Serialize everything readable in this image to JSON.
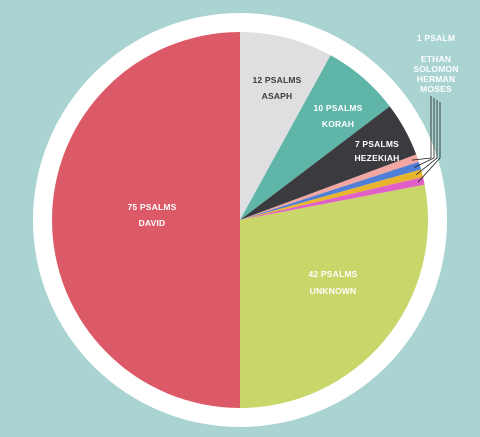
{
  "chart_data": {
    "type": "pie",
    "title": "",
    "unit": "PSALMS",
    "total": 150,
    "slices": [
      {
        "name": "ASAPH",
        "count_label": "12 PSALMS",
        "value": 12,
        "color": "#dfdfe1"
      },
      {
        "name": "KORAH",
        "count_label": "10 PSALMS",
        "value": 10,
        "color": "#5fb5a8"
      },
      {
        "name": "HEZEKIAH",
        "count_label": "7 PSALMS",
        "value": 7,
        "color": "#3b3b3f"
      },
      {
        "name": "ETHAN",
        "value": 1,
        "color": "#f2a7a2"
      },
      {
        "name": "SOLOMON",
        "value": 1,
        "color": "#4f7fd6"
      },
      {
        "name": "HERMAN",
        "value": 1,
        "color": "#e9b52c"
      },
      {
        "name": "MOSES",
        "value": 1,
        "color": "#e060c8"
      },
      {
        "name": "UNKNOWN",
        "count_label": "42 PSALMS",
        "value": 42,
        "color": "#c8d66a"
      },
      {
        "name": "DAVID",
        "count_label": "75 PSALMS",
        "value": 75,
        "color": "#dc5a68"
      }
    ],
    "callout": {
      "count_label": "1 PSALM",
      "names": [
        "ETHAN",
        "SOLOMON",
        "HERMAN",
        "MOSES"
      ]
    },
    "background_color": "#a9d4d1",
    "ring_color": "#ffffff",
    "start_angle": "12 o'clock",
    "direction": "clockwise"
  }
}
